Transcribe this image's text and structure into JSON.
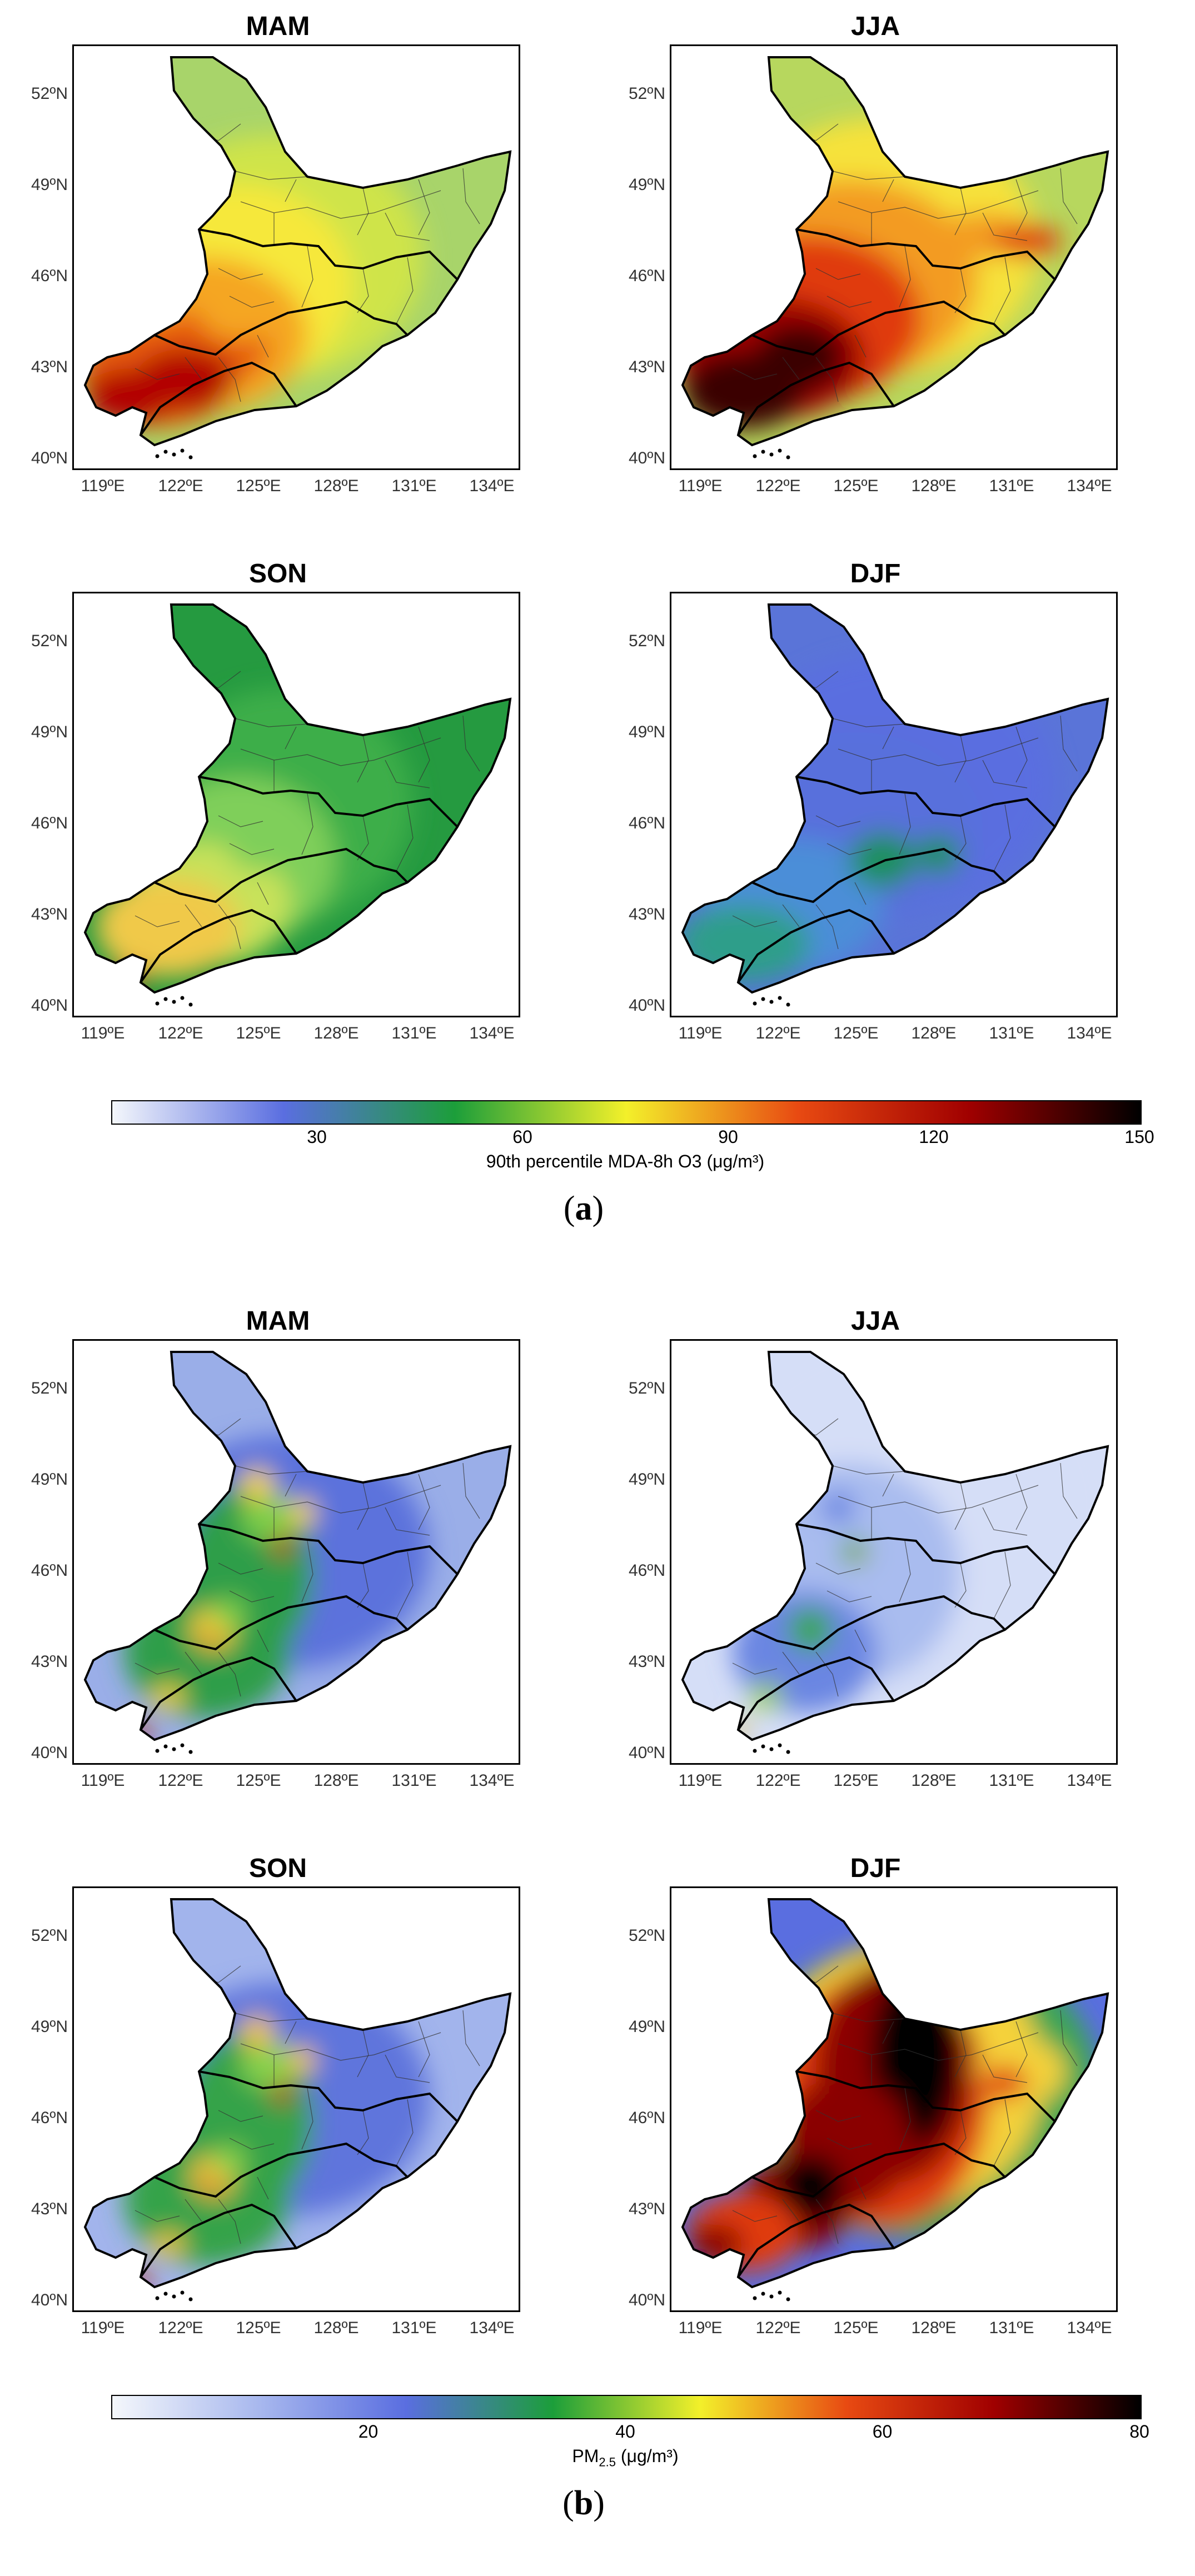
{
  "figure": {
    "parts": [
      {
        "label": "(a)",
        "label_inner": "a",
        "colorbar": {
          "label": "90th percentile MDA-8h O3 (μg/m³)",
          "ticks": [
            "30",
            "60",
            "90",
            "120",
            "150"
          ],
          "tick_values": [
            30,
            60,
            90,
            120,
            150
          ],
          "range": [
            0,
            150
          ],
          "colors": [
            "#f4f7fb",
            "#5a6ee0",
            "#1c9e3a",
            "#f3f02a",
            "#e84a12",
            "#a00000",
            "#000000"
          ]
        },
        "panels": [
          {
            "title": "MAM",
            "palette": [
              "#b20000",
              "#e65a10",
              "#f5a623",
              "#f6e83a",
              "#cfe44a",
              "#a8d46a"
            ]
          },
          {
            "title": "JJA",
            "palette": [
              "#3a0000",
              "#a00000",
              "#e03a10",
              "#f39b23",
              "#f6e23a",
              "#b7d75e"
            ]
          },
          {
            "title": "SON",
            "palette": [
              "#d22a10",
              "#f0c94a",
              "#c8e25a",
              "#7fcf5a",
              "#3cae48",
              "#259a40"
            ]
          },
          {
            "title": "DJF",
            "palette": [
              "#1f8f5e",
              "#2d9e8a",
              "#4c8ed8",
              "#5870dc",
              "#5a6ee0",
              "#5a74d8"
            ]
          }
        ]
      },
      {
        "label": "(b)",
        "label_inner": "b",
        "colorbar": {
          "label": "PM2.5 (μg/m³)",
          "label_main": "PM",
          "label_sub": "2.5",
          "label_units": " (μg/m³)",
          "ticks": [
            "20",
            "40",
            "60",
            "80"
          ],
          "tick_values": [
            20,
            40,
            60,
            80
          ],
          "range": [
            0,
            80
          ],
          "colors": [
            "#f4f7fb",
            "#a8b8ee",
            "#5a6ee0",
            "#1c9e3a",
            "#f3f02a",
            "#e84a12",
            "#a00000",
            "#000000"
          ]
        },
        "panels": [
          {
            "title": "MAM",
            "palette": [
              "#c00000",
              "#f5d23a",
              "#7ccf4a",
              "#2f9e4a",
              "#5c72dc",
              "#9aaee8"
            ]
          },
          {
            "title": "JJA",
            "palette": [
              "#e6c23a",
              "#9fd050",
              "#3aa652",
              "#6a86e2",
              "#a9bcef",
              "#d5def7"
            ]
          },
          {
            "title": "SON",
            "palette": [
              "#c00000",
              "#f2c43a",
              "#86d24c",
              "#35a34a",
              "#5e74dc",
              "#a2b4ec"
            ]
          },
          {
            "title": "DJF",
            "palette": [
              "#000000",
              "#8a0000",
              "#e03a10",
              "#f5d23a",
              "#3aa652",
              "#5a6ee0"
            ]
          }
        ]
      }
    ],
    "axes": {
      "lat_labels": [
        "52ºN",
        "49ºN",
        "46ºN",
        "43ºN",
        "40ºN"
      ],
      "lon_labels": [
        "119ºE",
        "122ºE",
        "125ºE",
        "128ºE",
        "131ºE",
        "134ºE"
      ]
    }
  }
}
